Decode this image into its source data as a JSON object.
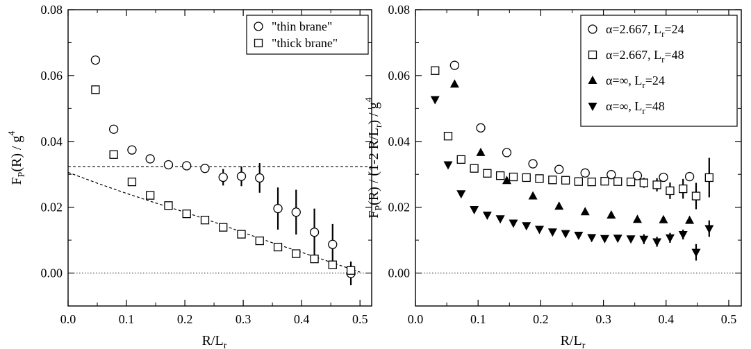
{
  "chart_data": [
    {
      "type": "scatter",
      "xlim": [
        0.0,
        0.52
      ],
      "ylim": [
        -0.01,
        0.08
      ],
      "xticks": [
        "0.0",
        "0.1",
        "0.2",
        "0.3",
        "0.4",
        "0.5"
      ],
      "xtick_values": [
        0.0,
        0.1,
        0.2,
        0.3,
        0.4,
        0.5
      ],
      "yticks": [
        "0.00",
        "0.02",
        "0.04",
        "0.06",
        "0.08"
      ],
      "ytick_values": [
        0.0,
        0.02,
        0.04,
        0.06,
        0.08
      ],
      "xlabel": {
        "main": "R/L",
        "sub": "r"
      },
      "ylabel": {
        "p1": "F",
        "s1": "P",
        "p2": "(R) / g",
        "sup": "4"
      },
      "legend_position": "top-right",
      "grid": false,
      "series": [
        {
          "name": "\"thin brane\"",
          "legend_label": "\"thin brane\"",
          "marker": "circle",
          "points": [
            {
              "x": 0.0469,
              "y": 0.0647,
              "err": 0.0
            },
            {
              "x": 0.0781,
              "y": 0.0437,
              "err": 0.0
            },
            {
              "x": 0.1094,
              "y": 0.0374,
              "err": 0.0
            },
            {
              "x": 0.1406,
              "y": 0.0347,
              "err": 0.0
            },
            {
              "x": 0.1719,
              "y": 0.0329,
              "err": 0.0
            },
            {
              "x": 0.2031,
              "y": 0.0326,
              "err": 0.0
            },
            {
              "x": 0.2344,
              "y": 0.0318,
              "err": 0.0
            },
            {
              "x": 0.2656,
              "y": 0.0291,
              "err": 0.0025
            },
            {
              "x": 0.2969,
              "y": 0.0294,
              "err": 0.003
            },
            {
              "x": 0.3281,
              "y": 0.0289,
              "err": 0.0045
            },
            {
              "x": 0.3594,
              "y": 0.0196,
              "err": 0.0064
            },
            {
              "x": 0.3906,
              "y": 0.0185,
              "err": 0.0068
            },
            {
              "x": 0.4219,
              "y": 0.0124,
              "err": 0.0072
            },
            {
              "x": 0.4531,
              "y": 0.0087,
              "err": 0.0062
            },
            {
              "x": 0.4844,
              "y": -0.0001,
              "err": 0.0036
            }
          ]
        },
        {
          "name": "\"thick brane\"",
          "legend_label": "\"thick brane\"",
          "marker": "square",
          "points": [
            {
              "x": 0.0469,
              "y": 0.0557,
              "err": 0.001
            },
            {
              "x": 0.0781,
              "y": 0.036,
              "err": 0.0
            },
            {
              "x": 0.1094,
              "y": 0.0277,
              "err": 0.0
            },
            {
              "x": 0.1406,
              "y": 0.0236,
              "err": 0.0
            },
            {
              "x": 0.1719,
              "y": 0.0205,
              "err": 0.0
            },
            {
              "x": 0.2031,
              "y": 0.018,
              "err": 0.0
            },
            {
              "x": 0.2344,
              "y": 0.0161,
              "err": 0.0
            },
            {
              "x": 0.2656,
              "y": 0.0139,
              "err": 0.0
            },
            {
              "x": 0.2969,
              "y": 0.0118,
              "err": 0.0
            },
            {
              "x": 0.3281,
              "y": 0.0098,
              "err": 0.0
            },
            {
              "x": 0.3594,
              "y": 0.0079,
              "err": 0.0
            },
            {
              "x": 0.3906,
              "y": 0.0059,
              "err": 0.0
            },
            {
              "x": 0.4219,
              "y": 0.0043,
              "err": 0.0
            },
            {
              "x": 0.4531,
              "y": 0.0025,
              "err": 0.0
            },
            {
              "x": 0.4844,
              "y": 0.0008,
              "err": 0.0
            }
          ]
        }
      ],
      "lines": [
        {
          "style": "dashed",
          "x": [
            0.0,
            0.52
          ],
          "y": [
            0.0323,
            0.0323
          ]
        },
        {
          "style": "dashed",
          "x": [
            0.0,
            0.05,
            0.1,
            0.15,
            0.2,
            0.25,
            0.3,
            0.35,
            0.4,
            0.45,
            0.5
          ],
          "y": [
            0.0306,
            0.0273,
            0.0242,
            0.0213,
            0.0185,
            0.0155,
            0.0123,
            0.0092,
            0.0063,
            0.0033,
            0.0003
          ]
        },
        {
          "style": "dotted",
          "x": [
            0.0,
            0.52
          ],
          "y": [
            0.0,
            0.0
          ]
        }
      ]
    },
    {
      "type": "scatter",
      "xlim": [
        0.0,
        0.52
      ],
      "ylim": [
        -0.01,
        0.08
      ],
      "xticks": [
        "0.0",
        "0.1",
        "0.2",
        "0.3",
        "0.4",
        "0.5"
      ],
      "xtick_values": [
        0.0,
        0.1,
        0.2,
        0.3,
        0.4,
        0.5
      ],
      "yticks": [
        "0.00",
        "0.02",
        "0.04",
        "0.06",
        "0.08"
      ],
      "ytick_values": [
        0.0,
        0.02,
        0.04,
        0.06,
        0.08
      ],
      "xlabel": {
        "main": "R/L",
        "sub": "r"
      },
      "ylabel": {
        "p1": "F",
        "s1": "P",
        "p2": "(R) / (1-2 R/L",
        "s2": "r",
        "p3": ") / g",
        "sup": "4"
      },
      "legend_position": "top-right",
      "grid": false,
      "series": [
        {
          "name": "α=2.667, Lr=24",
          "legend_label": {
            "main": "α=2.667, L",
            "sub": "r",
            "tail": "=24"
          },
          "marker": "circle",
          "points": [
            {
              "x": 0.0625,
              "y": 0.0631,
              "err": 0.0
            },
            {
              "x": 0.1042,
              "y": 0.0441,
              "err": 0.0
            },
            {
              "x": 0.1458,
              "y": 0.0366,
              "err": 0.0
            },
            {
              "x": 0.1875,
              "y": 0.0332,
              "err": 0.0
            },
            {
              "x": 0.2292,
              "y": 0.0315,
              "err": 0.0
            },
            {
              "x": 0.2708,
              "y": 0.0304,
              "err": 0.0
            },
            {
              "x": 0.3125,
              "y": 0.0299,
              "err": 0.0
            },
            {
              "x": 0.3542,
              "y": 0.0296,
              "err": 0.0
            },
            {
              "x": 0.3958,
              "y": 0.0291,
              "err": 0.0
            },
            {
              "x": 0.4375,
              "y": 0.0293,
              "err": 0.0
            }
          ]
        },
        {
          "name": "α=2.667, Lr=48",
          "legend_label": {
            "main": "α=2.667, L",
            "sub": "r",
            "tail": "=48"
          },
          "marker": "square",
          "points": [
            {
              "x": 0.0313,
              "y": 0.0615,
              "err": 0.0
            },
            {
              "x": 0.0521,
              "y": 0.0416,
              "err": 0.0
            },
            {
              "x": 0.0729,
              "y": 0.0345,
              "err": 0.0
            },
            {
              "x": 0.0938,
              "y": 0.0318,
              "err": 0.0
            },
            {
              "x": 0.1146,
              "y": 0.0303,
              "err": 0.0
            },
            {
              "x": 0.1354,
              "y": 0.0296,
              "err": 0.0
            },
            {
              "x": 0.1563,
              "y": 0.0292,
              "err": 0.0
            },
            {
              "x": 0.1771,
              "y": 0.029,
              "err": 0.0
            },
            {
              "x": 0.1979,
              "y": 0.0287,
              "err": 0.0
            },
            {
              "x": 0.2188,
              "y": 0.0283,
              "err": 0.0
            },
            {
              "x": 0.2396,
              "y": 0.0282,
              "err": 0.0
            },
            {
              "x": 0.2604,
              "y": 0.0278,
              "err": 0.0
            },
            {
              "x": 0.2813,
              "y": 0.0277,
              "err": 0.0
            },
            {
              "x": 0.3021,
              "y": 0.0279,
              "err": 0.0
            },
            {
              "x": 0.3229,
              "y": 0.0278,
              "err": 0.0
            },
            {
              "x": 0.3438,
              "y": 0.0277,
              "err": 0.001
            },
            {
              "x": 0.3646,
              "y": 0.0274,
              "err": 0.0015
            },
            {
              "x": 0.3854,
              "y": 0.0268,
              "err": 0.002
            },
            {
              "x": 0.4063,
              "y": 0.025,
              "err": 0.0025
            },
            {
              "x": 0.4271,
              "y": 0.0256,
              "err": 0.003
            },
            {
              "x": 0.4479,
              "y": 0.0234,
              "err": 0.004
            },
            {
              "x": 0.4688,
              "y": 0.029,
              "err": 0.006
            }
          ]
        },
        {
          "name": "α=∞, Lr=24",
          "legend_label": {
            "main": "α=∞, L",
            "sub": "r",
            "tail": "=24"
          },
          "marker": "triangle-up",
          "points": [
            {
              "x": 0.0625,
              "y": 0.0574,
              "err": 0.0
            },
            {
              "x": 0.1042,
              "y": 0.0366,
              "err": 0.0
            },
            {
              "x": 0.1458,
              "y": 0.0281,
              "err": 0.0
            },
            {
              "x": 0.1875,
              "y": 0.0234,
              "err": 0.0
            },
            {
              "x": 0.2292,
              "y": 0.0203,
              "err": 0.0
            },
            {
              "x": 0.2708,
              "y": 0.0186,
              "err": 0.0
            },
            {
              "x": 0.3125,
              "y": 0.0176,
              "err": 0.0
            },
            {
              "x": 0.3542,
              "y": 0.0163,
              "err": 0.0
            },
            {
              "x": 0.3958,
              "y": 0.0162,
              "err": 0.0
            },
            {
              "x": 0.4375,
              "y": 0.016,
              "err": 0.0
            }
          ]
        },
        {
          "name": "α=∞, Lr=48",
          "legend_label": {
            "main": "α=∞, L",
            "sub": "r",
            "tail": "=48"
          },
          "marker": "triangle-down",
          "points": [
            {
              "x": 0.0313,
              "y": 0.0527,
              "err": 0.0
            },
            {
              "x": 0.0521,
              "y": 0.0329,
              "err": 0.0
            },
            {
              "x": 0.0729,
              "y": 0.0241,
              "err": 0.0
            },
            {
              "x": 0.0938,
              "y": 0.0193,
              "err": 0.0
            },
            {
              "x": 0.1146,
              "y": 0.0176,
              "err": 0.0
            },
            {
              "x": 0.1354,
              "y": 0.0165,
              "err": 0.0
            },
            {
              "x": 0.1563,
              "y": 0.0152,
              "err": 0.0
            },
            {
              "x": 0.1771,
              "y": 0.0144,
              "err": 0.0
            },
            {
              "x": 0.1979,
              "y": 0.0133,
              "err": 0.0
            },
            {
              "x": 0.2188,
              "y": 0.0125,
              "err": 0.0
            },
            {
              "x": 0.2396,
              "y": 0.012,
              "err": 0.0
            },
            {
              "x": 0.2604,
              "y": 0.0115,
              "err": 0.0
            },
            {
              "x": 0.2813,
              "y": 0.0108,
              "err": 0.0
            },
            {
              "x": 0.3021,
              "y": 0.0105,
              "err": 0.0
            },
            {
              "x": 0.3229,
              "y": 0.0106,
              "err": 0.0
            },
            {
              "x": 0.3438,
              "y": 0.0104,
              "err": 0.0
            },
            {
              "x": 0.3646,
              "y": 0.0103,
              "err": 0.0015
            },
            {
              "x": 0.3854,
              "y": 0.0095,
              "err": 0.0015
            },
            {
              "x": 0.4063,
              "y": 0.0107,
              "err": 0.0015
            },
            {
              "x": 0.4271,
              "y": 0.0117,
              "err": 0.0015
            },
            {
              "x": 0.4479,
              "y": 0.0063,
              "err": 0.0025
            },
            {
              "x": 0.4688,
              "y": 0.0135,
              "err": 0.0025
            }
          ]
        }
      ],
      "lines": [
        {
          "style": "dotted",
          "x": [
            0.0,
            0.52
          ],
          "y": [
            0.0,
            0.0
          ]
        }
      ]
    }
  ]
}
